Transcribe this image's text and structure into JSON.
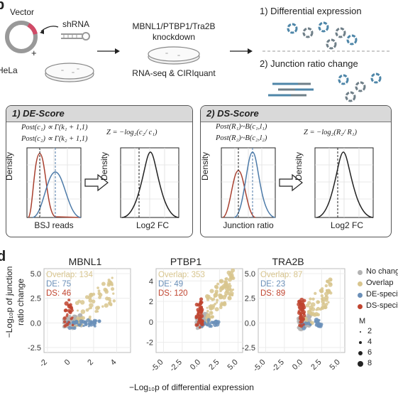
{
  "panel_b": {
    "letter": "b",
    "vector_label": "Vector",
    "shrna_label": "shRNA",
    "plus": "+",
    "hela_label": "HeLa",
    "knockdown_line1": "MBNL1/PTBP1/Tra2B",
    "knockdown_line2": "knockdown",
    "method_label": "RNA-seq & CIRIquant",
    "step1": "1) Differential expression",
    "step2": "2) Junction ratio change",
    "de_box": {
      "title": "1) DE-Score",
      "formula1": "Post(c₁) ∝ Γ(k₁ + 1,1)",
      "formula2": "Post(c₂) ∝ Γ(k₂ + 1,1)",
      "z_formula": "Z = −log₂(c₂/ c₁)",
      "left_ylabel": "Density",
      "left_xlabel": "BSJ reads",
      "right_ylabel": "Density",
      "right_xlabel": "Log2 FC"
    },
    "ds_box": {
      "title": "2) DS-Score",
      "formula1": "Post(R₁)~B(c₁,l₁)",
      "formula2": "Post(R₂)~B(c₂,l₂)",
      "z_formula": "Z = −log₂(R₂/ R₁)",
      "left_ylabel": "Density",
      "left_xlabel": "Junction ratio",
      "right_ylabel": "Density",
      "right_xlabel": "Log2 FC"
    }
  },
  "panel_d": {
    "letter": "d",
    "ylabel_line1": "−Log₁₀p of junction",
    "ylabel_line2": "ratio change",
    "xlabel": "−Log₁₀p of differential expression",
    "colors": {
      "no_change": "#b3b3b3",
      "overlap": "#d8c58e",
      "de_specific": "#6a8fb8",
      "ds_specific": "#c0442f"
    },
    "legend": {
      "items": [
        "No change",
        "Overlap",
        "DE-specific",
        "DS-specific"
      ],
      "size_title": "M",
      "sizes": [
        "2",
        "4",
        "6",
        "8"
      ]
    }
  },
  "chart_data": [
    {
      "type": "scatter",
      "title": "MBNL1",
      "annotations": [
        "Overlap: 134",
        "DE: 75",
        "DS: 46"
      ],
      "x_ticks": [
        "-2",
        "0",
        "2",
        "4"
      ],
      "y_ticks": [
        "5.0",
        "2.5",
        "0.0",
        "-2.5"
      ],
      "xlim": [
        -2.3,
        5.2
      ],
      "ylim": [
        -3.0,
        5.5
      ]
    },
    {
      "type": "scatter",
      "title": "PTBP1",
      "annotations": [
        "Overlap: 353",
        "DE: 49",
        "DS: 120"
      ],
      "x_ticks": [
        "-5.0",
        "-2.5",
        "0.0",
        "2.5",
        "5.0"
      ],
      "y_ticks": [
        "4",
        "2",
        "0",
        "-2"
      ],
      "xlim": [
        -6.0,
        5.6
      ],
      "ylim": [
        -3.0,
        5.2
      ]
    },
    {
      "type": "scatter",
      "title": "TRA2B",
      "annotations": [
        "Overlap: 87",
        "DE: 23",
        "DS: 89"
      ],
      "x_ticks": [
        "-5.0",
        "-2.5",
        "0.0",
        "2.5",
        "5.0"
      ],
      "y_ticks": [
        "5.0",
        "2.5",
        "0.0",
        "-2.5"
      ],
      "xlim": [
        -6.0,
        5.6
      ],
      "ylim": [
        -3.0,
        5.5
      ]
    }
  ]
}
